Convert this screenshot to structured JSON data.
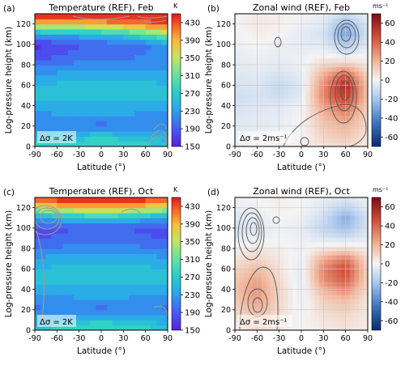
{
  "chart_data": [
    {
      "panel_label": "(a)",
      "type": "heatmap",
      "title": "Temperature (REF), Feb",
      "xlabel": "Latitude (°)",
      "ylabel": "Log-pressure height (km)",
      "xlim": [
        -90,
        90
      ],
      "ylim": [
        0,
        130
      ],
      "xticks": [
        "-90",
        "-60",
        "-30",
        "0",
        "30",
        "60",
        "90"
      ],
      "yticks": [
        "0",
        "20",
        "40",
        "60",
        "80",
        "100",
        "120"
      ],
      "colorbar": {
        "unit": "K",
        "ticks": [
          "150",
          "190",
          "230",
          "270",
          "310",
          "350",
          "390",
          "430"
        ],
        "min": 150,
        "max": 450
      },
      "annotation": "Δσ = 2K",
      "field": {
        "x": [
          -90,
          -60,
          -30,
          0,
          30,
          60,
          90
        ],
        "y": [
          0,
          10,
          20,
          30,
          40,
          50,
          60,
          70,
          80,
          90,
          100,
          110,
          120,
          130
        ],
        "values": [
          [
            290,
            285,
            290,
            295,
            290,
            280,
            270
          ],
          [
            255,
            255,
            260,
            268,
            260,
            250,
            240
          ],
          [
            215,
            218,
            215,
            200,
            215,
            218,
            215
          ],
          [
            225,
            228,
            230,
            228,
            228,
            225,
            220
          ],
          [
            238,
            240,
            242,
            240,
            242,
            240,
            236
          ],
          [
            258,
            260,
            262,
            262,
            262,
            260,
            255
          ],
          [
            252,
            255,
            258,
            262,
            262,
            258,
            250
          ],
          [
            232,
            236,
            240,
            242,
            242,
            240,
            235
          ],
          [
            205,
            212,
            218,
            222,
            222,
            225,
            225
          ],
          [
            175,
            188,
            195,
            198,
            202,
            210,
            225
          ],
          [
            165,
            178,
            188,
            192,
            196,
            205,
            230
          ],
          [
            235,
            240,
            245,
            255,
            270,
            300,
            330
          ],
          [
            370,
            375,
            380,
            395,
            405,
            420,
            430
          ],
          [
            450,
            450,
            450,
            450,
            450,
            450,
            450
          ]
        ]
      }
    },
    {
      "panel_label": "(b)",
      "type": "heatmap",
      "title": "Zonal wind (REF), Feb",
      "xlabel": "Latitude (°)",
      "ylabel": "Log-pressure height (km)",
      "xlim": [
        -90,
        90
      ],
      "ylim": [
        0,
        130
      ],
      "xticks": [
        "-90",
        "-60",
        "-30",
        "0",
        "30",
        "60",
        "90"
      ],
      "yticks": [
        "0",
        "20",
        "40",
        "60",
        "80",
        "100",
        "120"
      ],
      "colorbar": {
        "unit": "ms⁻¹",
        "ticks": [
          "60",
          "40",
          "20",
          "0",
          "-20",
          "-40",
          "-60"
        ],
        "min": -70,
        "max": 70
      },
      "annotation": "Δσ = 2ms⁻¹",
      "field": {
        "x": [
          -90,
          -60,
          -30,
          0,
          30,
          60,
          90
        ],
        "y": [
          0,
          10,
          20,
          30,
          40,
          50,
          60,
          70,
          80,
          90,
          100,
          110,
          120,
          130
        ],
        "values": [
          [
            -3,
            0,
            2,
            2,
            5,
            8,
            3
          ],
          [
            -4,
            -2,
            0,
            0,
            10,
            15,
            5
          ],
          [
            -5,
            -4,
            -3,
            0,
            14,
            20,
            8
          ],
          [
            -6,
            -5,
            -4,
            0,
            18,
            28,
            10
          ],
          [
            -8,
            -6,
            -5,
            -2,
            25,
            40,
            12
          ],
          [
            -10,
            -8,
            -10,
            -5,
            32,
            52,
            15
          ],
          [
            -8,
            -6,
            -12,
            -6,
            30,
            58,
            14
          ],
          [
            -6,
            -5,
            -8,
            -4,
            22,
            42,
            10
          ],
          [
            -4,
            -3,
            -4,
            -2,
            10,
            15,
            5
          ],
          [
            -3,
            -2,
            -3,
            -2,
            0,
            -5,
            0
          ],
          [
            -2,
            0,
            -2,
            -4,
            -5,
            -18,
            -5
          ],
          [
            -2,
            2,
            0,
            -4,
            -8,
            -30,
            -8
          ],
          [
            0,
            4,
            2,
            -2,
            -5,
            -25,
            -6
          ],
          [
            0,
            3,
            2,
            0,
            -3,
            -10,
            -3
          ]
        ]
      }
    },
    {
      "panel_label": "(c)",
      "type": "heatmap",
      "title": "Temperature (REF), Oct",
      "xlabel": "Latitude (°)",
      "ylabel": "Log-pressure height (km)",
      "xlim": [
        -90,
        90
      ],
      "ylim": [
        0,
        130
      ],
      "xticks": [
        "-90",
        "-60",
        "-30",
        "0",
        "30",
        "60",
        "90"
      ],
      "yticks": [
        "0",
        "20",
        "40",
        "60",
        "80",
        "100",
        "120"
      ],
      "colorbar": {
        "unit": "K",
        "ticks": [
          "150",
          "190",
          "230",
          "270",
          "310",
          "350",
          "390",
          "430"
        ],
        "min": 150,
        "max": 450
      },
      "annotation": "Δσ = 2K",
      "field": {
        "x": [
          -90,
          -60,
          -30,
          0,
          30,
          60,
          90
        ],
        "y": [
          0,
          10,
          20,
          30,
          40,
          50,
          60,
          70,
          80,
          90,
          100,
          110,
          120,
          130
        ],
        "values": [
          [
            270,
            280,
            292,
            298,
            292,
            280,
            265
          ],
          [
            240,
            248,
            258,
            265,
            258,
            248,
            238
          ],
          [
            205,
            212,
            215,
            200,
            215,
            212,
            205
          ],
          [
            218,
            222,
            228,
            228,
            228,
            222,
            218
          ],
          [
            235,
            238,
            242,
            242,
            242,
            238,
            235
          ],
          [
            255,
            258,
            262,
            262,
            262,
            258,
            255
          ],
          [
            250,
            255,
            258,
            262,
            258,
            255,
            250
          ],
          [
            232,
            238,
            240,
            242,
            240,
            238,
            232
          ],
          [
            210,
            215,
            220,
            222,
            220,
            215,
            210
          ],
          [
            190,
            192,
            198,
            198,
            198,
            192,
            190
          ],
          [
            185,
            185,
            190,
            192,
            190,
            185,
            185
          ],
          [
            230,
            240,
            255,
            262,
            255,
            240,
            230
          ],
          [
            360,
            370,
            385,
            395,
            385,
            370,
            360
          ],
          [
            450,
            450,
            450,
            450,
            450,
            450,
            450
          ]
        ]
      }
    },
    {
      "panel_label": "(d)",
      "type": "heatmap",
      "title": "Zonal wind (REF), Oct",
      "xlabel": "Latitude (°)",
      "ylabel": "Log-pressure height (km)",
      "xlim": [
        -90,
        90
      ],
      "ylim": [
        0,
        130
      ],
      "xticks": [
        "-90",
        "-60",
        "-30",
        "0",
        "30",
        "60",
        "90"
      ],
      "yticks": [
        "0",
        "20",
        "40",
        "60",
        "80",
        "100",
        "120"
      ],
      "colorbar": {
        "unit": "ms⁻¹",
        "ticks": [
          "60",
          "40",
          "20",
          "0",
          "-20",
          "-40",
          "-60"
        ],
        "min": -70,
        "max": 70
      },
      "annotation": "Δσ = 2ms⁻¹",
      "field": {
        "x": [
          -90,
          -60,
          -30,
          0,
          30,
          60,
          90
        ],
        "y": [
          0,
          10,
          20,
          30,
          40,
          50,
          60,
          70,
          80,
          90,
          100,
          110,
          120,
          130
        ],
        "values": [
          [
            3,
            8,
            4,
            0,
            3,
            5,
            2
          ],
          [
            6,
            14,
            6,
            0,
            5,
            8,
            3
          ],
          [
            10,
            20,
            8,
            -2,
            8,
            12,
            4
          ],
          [
            14,
            26,
            10,
            -3,
            12,
            18,
            5
          ],
          [
            16,
            28,
            10,
            -4,
            20,
            30,
            8
          ],
          [
            14,
            24,
            8,
            -5,
            30,
            42,
            10
          ],
          [
            10,
            18,
            6,
            -5,
            32,
            48,
            10
          ],
          [
            6,
            10,
            4,
            -3,
            22,
            35,
            8
          ],
          [
            2,
            4,
            2,
            -2,
            5,
            8,
            2
          ],
          [
            -4,
            -3,
            0,
            -2,
            -6,
            -8,
            -4
          ],
          [
            -8,
            -6,
            -2,
            -3,
            -14,
            -22,
            -6
          ],
          [
            -6,
            -4,
            0,
            -2,
            -10,
            -28,
            -8
          ],
          [
            -3,
            -2,
            2,
            0,
            -6,
            -15,
            -4
          ],
          [
            -2,
            0,
            2,
            0,
            -3,
            -6,
            -2
          ]
        ]
      }
    }
  ]
}
